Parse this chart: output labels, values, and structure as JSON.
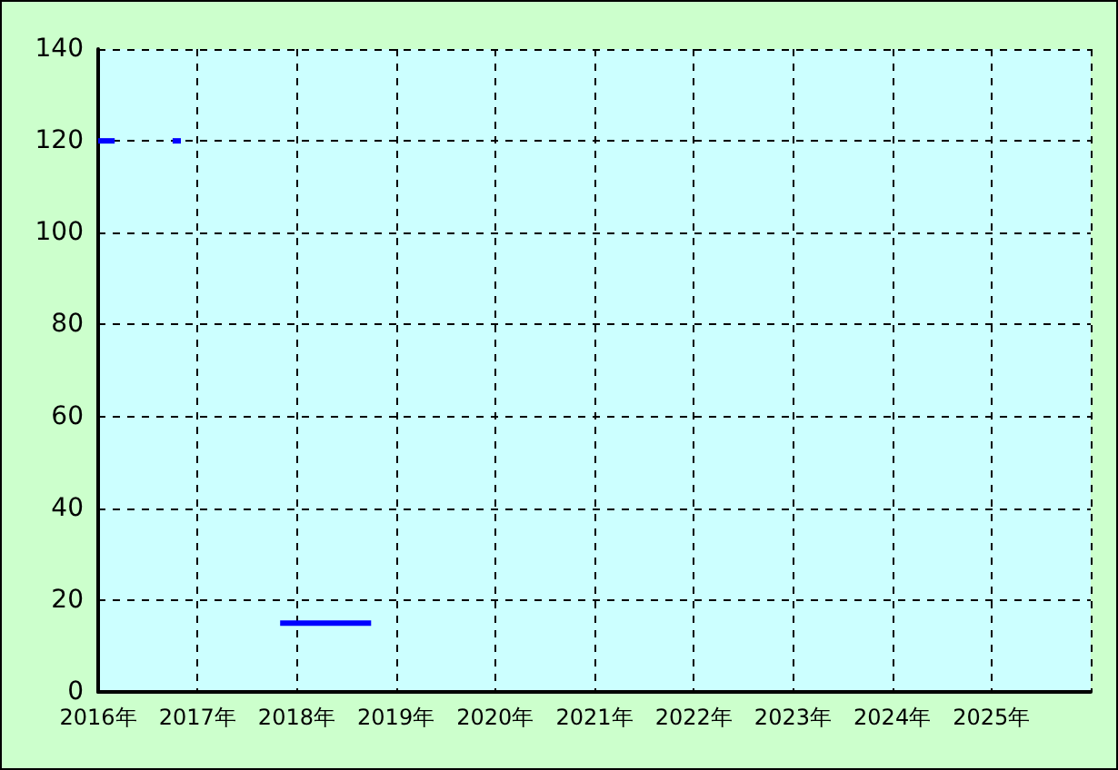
{
  "chart_data": {
    "type": "line",
    "series": [
      {
        "color": "#0000ff",
        "x": [
          "2016-01",
          "2016-03"
        ],
        "values": [
          120,
          120
        ]
      },
      {
        "color": "#0000ff",
        "x": [
          "2016-10",
          "2016-11"
        ],
        "values": [
          120,
          120
        ]
      },
      {
        "color": "#0000ff",
        "x": [
          "2017-11",
          "2018-10"
        ],
        "values": [
          15,
          15
        ]
      }
    ],
    "xlim": [
      "2016",
      "2026"
    ],
    "xticks": [
      {
        "value": "2016",
        "label": "2016年"
      },
      {
        "value": "2017",
        "label": "2017年"
      },
      {
        "value": "2018",
        "label": "2018年"
      },
      {
        "value": "2019",
        "label": "2019年"
      },
      {
        "value": "2020",
        "label": "2020年"
      },
      {
        "value": "2021",
        "label": "2021年"
      },
      {
        "value": "2022",
        "label": "2022年"
      },
      {
        "value": "2023",
        "label": "2023年"
      },
      {
        "value": "2024",
        "label": "2024年"
      },
      {
        "value": "2025",
        "label": "2025年"
      },
      {
        "value": "2026",
        "label": null
      }
    ],
    "ylim": [
      0,
      140
    ],
    "yticks": [
      0,
      20,
      40,
      60,
      80,
      100,
      120,
      140
    ],
    "grid": true,
    "marker": "none",
    "line_style": "solid"
  }
}
